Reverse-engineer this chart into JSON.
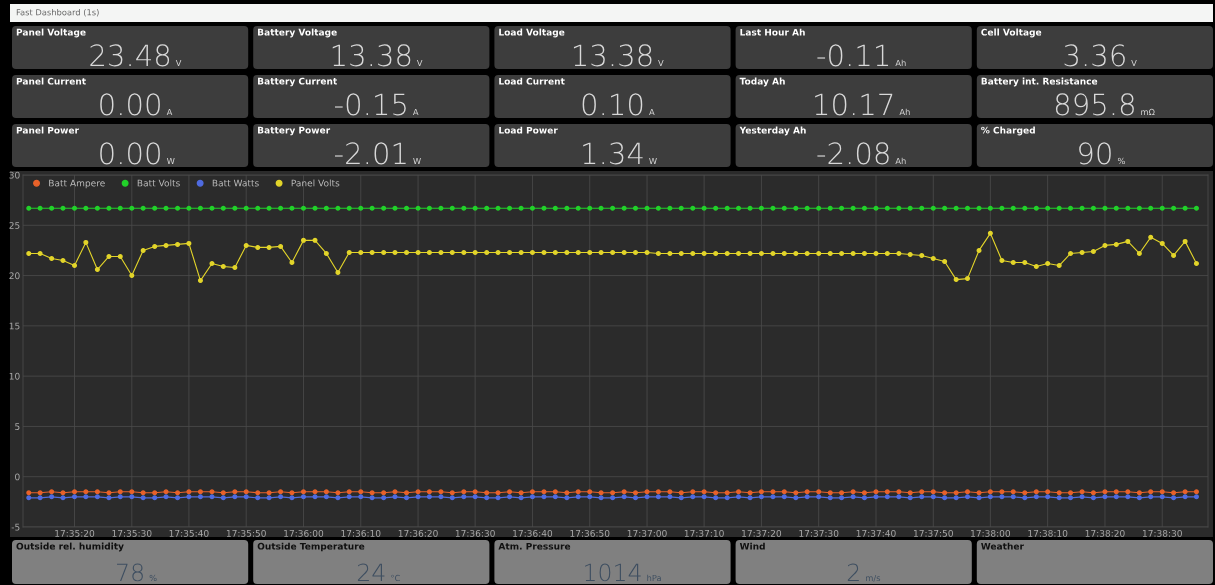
{
  "chart_data": [
    {
      "type": "other",
      "title": "Fast Dashboard (1s)",
      "categories": [
        "Panel Voltage",
        "Battery Voltage",
        "Load Voltage",
        "Last Hour Ah",
        "Cell Voltage",
        "Panel Current",
        "Battery Current",
        "Load Current",
        "Today Ah",
        "Battery int. Resistance",
        "Panel Power",
        "Battery Power",
        "Load Power",
        "Yesterday Ah",
        "% Charged"
      ],
      "value_labels": [
        "23.48 V",
        "13.38 V",
        "13.38 V",
        "-0.11 Ah",
        "3.36 V",
        "0.00 A",
        "-0.15 A",
        "0.10 A",
        "10.17 Ah",
        "895.8 mΩ",
        "0.00 W",
        "-2.01 W",
        "1.34 W",
        "-2.08 Ah",
        "90 %"
      ]
    },
    {
      "type": "line",
      "marker": "circle",
      "line_style": "solid",
      "grid": true,
      "legend": "top left",
      "x": [
        17.58667,
        17.58722,
        17.58778,
        17.58833,
        17.58889,
        17.58944,
        17.59,
        17.59056,
        17.59111,
        17.59167,
        17.59222,
        17.59278,
        17.59333,
        17.59389,
        17.59444,
        17.595,
        17.59556,
        17.59611,
        17.59667,
        17.59722,
        17.59778,
        17.59833,
        17.59889,
        17.59944,
        17.6,
        17.60056,
        17.60111,
        17.60167,
        17.60222,
        17.60278,
        17.60333,
        17.60389,
        17.60444,
        17.605,
        17.60556,
        17.60611,
        17.60667,
        17.60722,
        17.60778,
        17.60833,
        17.60889,
        17.60944,
        17.61,
        17.61056,
        17.61111,
        17.61167,
        17.61222,
        17.61278,
        17.61333,
        17.61389,
        17.61444,
        17.615,
        17.61556,
        17.61611,
        17.61667,
        17.61722,
        17.61778,
        17.61833,
        17.61889,
        17.61944,
        17.62,
        17.62056,
        17.62111,
        17.62167,
        17.62222,
        17.62278,
        17.62333,
        17.62389,
        17.62444,
        17.625,
        17.62556,
        17.62611,
        17.62667,
        17.62722,
        17.62778,
        17.62833,
        17.62889,
        17.62944,
        17.63,
        17.63056,
        17.63111,
        17.63167,
        17.63222,
        17.63278,
        17.63333,
        17.63389,
        17.63444,
        17.635,
        17.63556,
        17.63611,
        17.63667,
        17.63722,
        17.63778,
        17.63833,
        17.63889,
        17.63944,
        17.64,
        17.64056,
        17.64111,
        17.64167,
        17.64222,
        17.64278,
        17.64333
      ],
      "xlim": [
        17.58639,
        17.64389
      ],
      "xticks": [
        {
          "value": 17.58889,
          "label": "17:35:20"
        },
        {
          "value": 17.59167,
          "label": "17:35:30"
        },
        {
          "value": 17.59444,
          "label": "17:35:40"
        },
        {
          "value": 17.59722,
          "label": "17:35:50"
        },
        {
          "value": 17.6,
          "label": "17:36:00"
        },
        {
          "value": 17.60278,
          "label": "17:36:10"
        },
        {
          "value": 17.60556,
          "label": "17:36:20"
        },
        {
          "value": 17.60833,
          "label": "17:36:30"
        },
        {
          "value": 17.61111,
          "label": "17:36:40"
        },
        {
          "value": 17.61389,
          "label": "17:36:50"
        },
        {
          "value": 17.61667,
          "label": "17:37:00"
        },
        {
          "value": 17.61944,
          "label": "17:37:10"
        },
        {
          "value": 17.62222,
          "label": "17:37:20"
        },
        {
          "value": 17.625,
          "label": "17:37:30"
        },
        {
          "value": 17.62778,
          "label": "17:37:40"
        },
        {
          "value": 17.63056,
          "label": "17:37:50"
        },
        {
          "value": 17.63333,
          "label": "17:38:00"
        },
        {
          "value": 17.63611,
          "label": "17:38:10"
        },
        {
          "value": 17.63889,
          "label": "17:38:20"
        },
        {
          "value": 17.64167,
          "label": "17:38:30"
        }
      ],
      "ylim": [
        -5,
        30
      ],
      "yticks": [
        -5,
        0,
        5,
        10,
        15,
        20,
        25,
        30
      ],
      "series": [
        {
          "name": "Batt Ampere",
          "color": "#e8622a",
          "values": [
            -1.6,
            -1.6,
            -1.5,
            -1.6,
            -1.5,
            -1.5,
            -1.5,
            -1.6,
            -1.5,
            -1.5,
            -1.6,
            -1.6,
            -1.5,
            -1.6,
            -1.5,
            -1.5,
            -1.5,
            -1.6,
            -1.5,
            -1.5,
            -1.6,
            -1.6,
            -1.5,
            -1.6,
            -1.5,
            -1.5,
            -1.5,
            -1.6,
            -1.5,
            -1.5,
            -1.6,
            -1.6,
            -1.5,
            -1.6,
            -1.5,
            -1.5,
            -1.5,
            -1.6,
            -1.5,
            -1.5,
            -1.6,
            -1.6,
            -1.5,
            -1.6,
            -1.5,
            -1.5,
            -1.5,
            -1.6,
            -1.5,
            -1.5,
            -1.6,
            -1.6,
            -1.5,
            -1.6,
            -1.5,
            -1.5,
            -1.5,
            -1.6,
            -1.5,
            -1.5,
            -1.6,
            -1.6,
            -1.5,
            -1.6,
            -1.5,
            -1.5,
            -1.5,
            -1.6,
            -1.5,
            -1.5,
            -1.6,
            -1.6,
            -1.5,
            -1.6,
            -1.5,
            -1.5,
            -1.5,
            -1.6,
            -1.5,
            -1.5,
            -1.6,
            -1.6,
            -1.5,
            -1.6,
            -1.5,
            -1.5,
            -1.5,
            -1.6,
            -1.5,
            -1.5,
            -1.6,
            -1.6,
            -1.5,
            -1.6,
            -1.5,
            -1.5,
            -1.5,
            -1.6,
            -1.5,
            -1.5,
            -1.6,
            -1.5,
            -1.5
          ]
        },
        {
          "name": "Batt Volts",
          "color": "#22d12a",
          "values": [
            26.7,
            26.7,
            26.7,
            26.7,
            26.7,
            26.7,
            26.7,
            26.7,
            26.7,
            26.7,
            26.7,
            26.7,
            26.7,
            26.7,
            26.7,
            26.7,
            26.7,
            26.7,
            26.7,
            26.7,
            26.7,
            26.7,
            26.7,
            26.7,
            26.7,
            26.7,
            26.7,
            26.7,
            26.7,
            26.7,
            26.7,
            26.7,
            26.7,
            26.7,
            26.7,
            26.7,
            26.7,
            26.7,
            26.7,
            26.7,
            26.7,
            26.7,
            26.7,
            26.7,
            26.7,
            26.7,
            26.7,
            26.7,
            26.7,
            26.7,
            26.7,
            26.7,
            26.7,
            26.7,
            26.7,
            26.7,
            26.7,
            26.7,
            26.7,
            26.7,
            26.7,
            26.7,
            26.7,
            26.7,
            26.7,
            26.7,
            26.7,
            26.7,
            26.7,
            26.7,
            26.7,
            26.7,
            26.7,
            26.7,
            26.7,
            26.7,
            26.7,
            26.7,
            26.7,
            26.7,
            26.7,
            26.7,
            26.7,
            26.7,
            26.7,
            26.7,
            26.7,
            26.7,
            26.7,
            26.7,
            26.7,
            26.7,
            26.7,
            26.7,
            26.7,
            26.7,
            26.7,
            26.7,
            26.7,
            26.7,
            26.7,
            26.7,
            26.7
          ]
        },
        {
          "name": "Batt Watts",
          "color": "#4f6be0",
          "values": [
            -2.1,
            -2.1,
            -2.0,
            -2.1,
            -2.0,
            -2.0,
            -2.0,
            -2.1,
            -2.0,
            -2.0,
            -2.1,
            -2.1,
            -2.0,
            -2.1,
            -2.0,
            -2.0,
            -2.0,
            -2.1,
            -2.0,
            -2.0,
            -2.1,
            -2.1,
            -2.0,
            -2.1,
            -2.0,
            -2.0,
            -2.0,
            -2.1,
            -2.0,
            -2.0,
            -2.1,
            -2.1,
            -2.0,
            -2.1,
            -2.0,
            -2.0,
            -2.0,
            -2.1,
            -2.0,
            -2.0,
            -2.1,
            -2.1,
            -2.0,
            -2.1,
            -2.0,
            -2.0,
            -2.0,
            -2.1,
            -2.0,
            -2.0,
            -2.1,
            -2.1,
            -2.0,
            -2.1,
            -2.0,
            -2.0,
            -2.0,
            -2.1,
            -2.0,
            -2.0,
            -2.1,
            -2.1,
            -2.0,
            -2.1,
            -2.0,
            -2.0,
            -2.0,
            -2.1,
            -2.0,
            -2.0,
            -2.1,
            -2.1,
            -2.0,
            -2.1,
            -2.0,
            -2.0,
            -2.0,
            -2.1,
            -2.0,
            -2.0,
            -2.1,
            -2.1,
            -2.0,
            -2.1,
            -2.0,
            -2.0,
            -2.0,
            -2.1,
            -2.0,
            -2.0,
            -2.1,
            -2.1,
            -2.0,
            -2.1,
            -2.0,
            -2.0,
            -2.0,
            -2.1,
            -2.0,
            -2.0,
            -2.1,
            -2.0,
            -2.0
          ]
        },
        {
          "name": "Panel Volts",
          "color": "#e3d52a",
          "values": [
            22.2,
            22.2,
            21.7,
            21.5,
            21.0,
            23.3,
            20.6,
            21.9,
            21.9,
            20.0,
            22.5,
            22.9,
            23.0,
            23.1,
            23.2,
            19.5,
            21.2,
            20.9,
            20.8,
            23.0,
            22.8,
            22.8,
            22.9,
            21.3,
            23.5,
            23.5,
            22.2,
            20.3,
            22.3,
            22.3,
            22.3,
            22.3,
            22.3,
            22.3,
            22.3,
            22.3,
            22.3,
            22.3,
            22.3,
            22.3,
            22.3,
            22.3,
            22.3,
            22.3,
            22.3,
            22.3,
            22.3,
            22.3,
            22.3,
            22.3,
            22.3,
            22.3,
            22.3,
            22.3,
            22.3,
            22.2,
            22.2,
            22.2,
            22.2,
            22.2,
            22.2,
            22.2,
            22.2,
            22.2,
            22.2,
            22.2,
            22.2,
            22.2,
            22.2,
            22.2,
            22.2,
            22.2,
            22.2,
            22.2,
            22.2,
            22.2,
            22.2,
            22.1,
            22.0,
            21.7,
            21.4,
            19.6,
            19.7,
            22.5,
            24.2,
            21.5,
            21.3,
            21.3,
            20.9,
            21.2,
            21.0,
            22.2,
            22.3,
            22.4,
            23.0,
            23.1,
            23.4,
            22.2,
            23.8,
            23.2,
            22.0,
            23.4,
            21.2
          ]
        }
      ]
    },
    {
      "type": "other",
      "categories": [
        "Outside rel. humidity",
        "Outside Temperature",
        "Atm. Pressure",
        "Wind",
        "Weather"
      ],
      "value_labels": [
        "78 %",
        "24 °C",
        "1014 hPa",
        "2 m/s",
        null
      ]
    }
  ]
}
